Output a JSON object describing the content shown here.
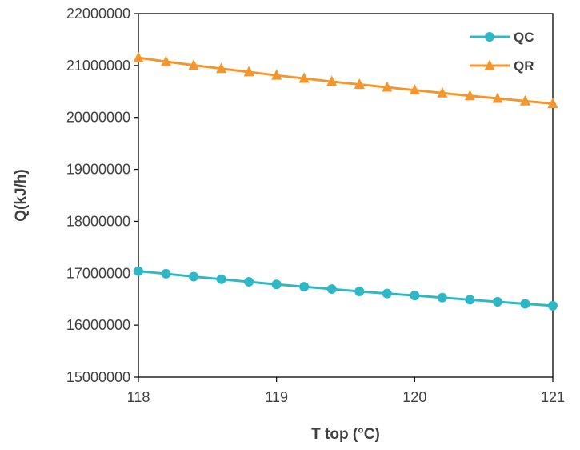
{
  "chart_data": {
    "type": "line",
    "x": [
      118,
      118.2,
      118.4,
      118.6,
      118.8,
      119,
      119.2,
      119.4,
      119.6,
      119.8,
      120,
      120.2,
      120.4,
      120.6,
      120.8,
      121
    ],
    "series": [
      {
        "name": "QC",
        "color": "#2EB8C6",
        "marker": "circle",
        "values": [
          17040000,
          16990000,
          16935000,
          16885000,
          16835000,
          16785000,
          16740000,
          16695000,
          16650000,
          16610000,
          16570000,
          16530000,
          16490000,
          16450000,
          16410000,
          16375000
        ]
      },
      {
        "name": "QR",
        "color": "#F5962C",
        "marker": "triangle",
        "values": [
          21150000,
          21075000,
          21005000,
          20940000,
          20875000,
          20810000,
          20750000,
          20690000,
          20635000,
          20580000,
          20525000,
          20470000,
          20415000,
          20365000,
          20315000,
          20265000
        ]
      }
    ],
    "xlabel": "T top (°C)",
    "ylabel": "Q(kJ/h)",
    "xlim": [
      118,
      121
    ],
    "ylim": [
      15000000,
      22000000
    ],
    "xticks": [
      "118",
      "119",
      "120",
      "121"
    ],
    "yticks": [
      "15000000",
      "16000000",
      "17000000",
      "18000000",
      "19000000",
      "20000000",
      "21000000",
      "22000000"
    ],
    "grid": false,
    "legend": "top-right"
  }
}
